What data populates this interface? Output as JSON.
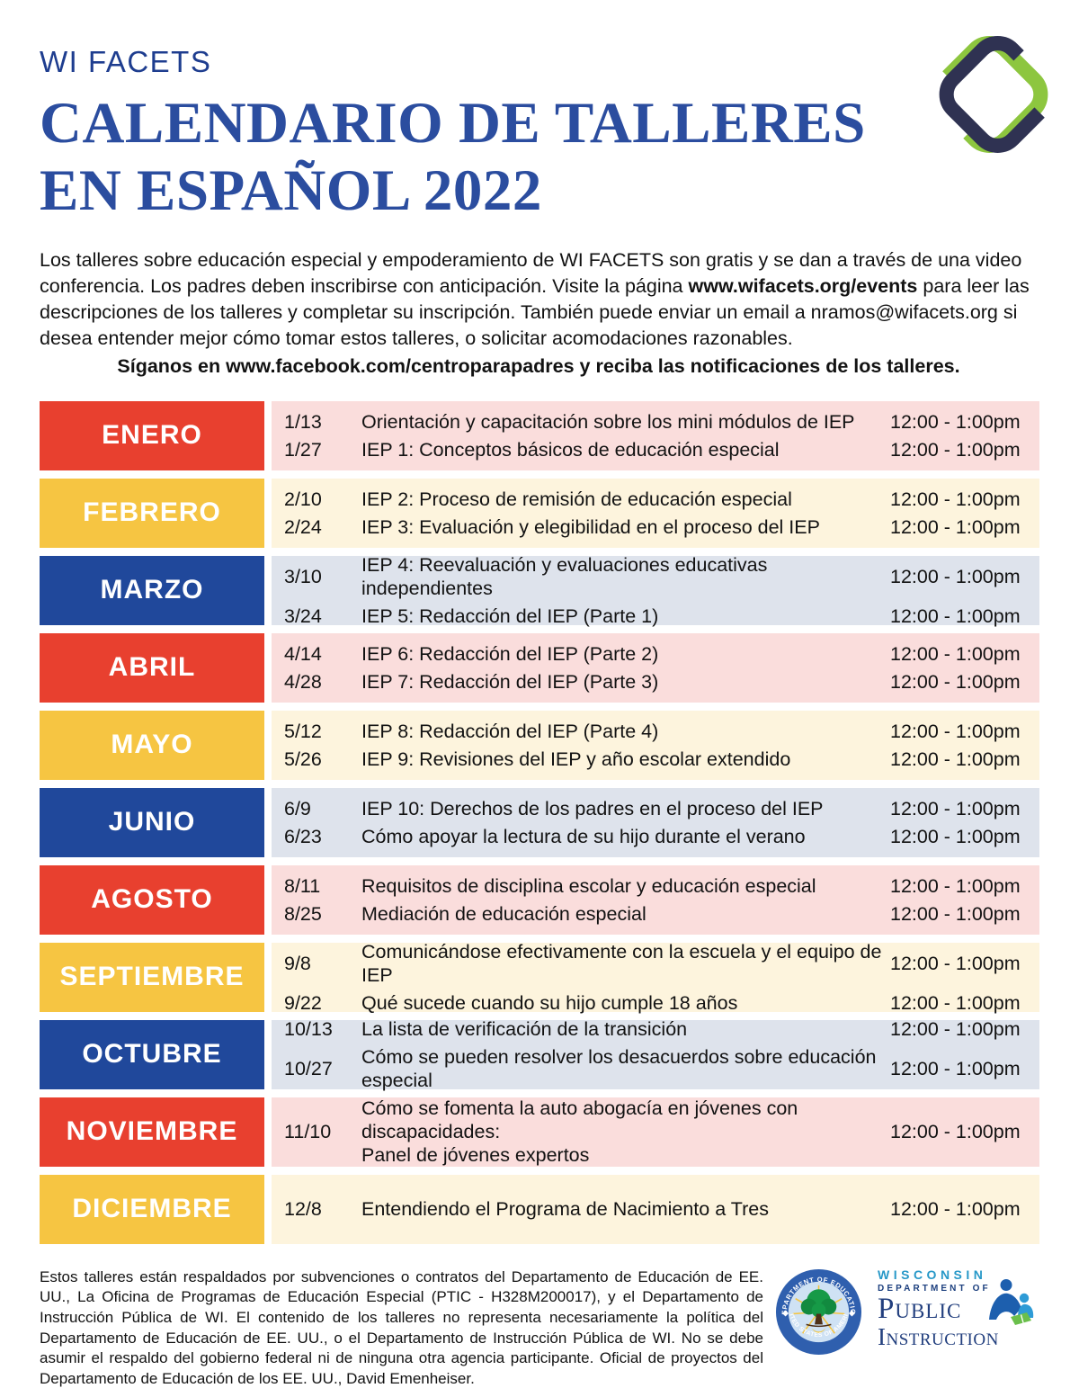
{
  "header": {
    "org": "WI FACETS",
    "title_line1": "CALENDARIO DE TALLERES",
    "title_line2": "EN ESPAÑOL 2022"
  },
  "intro": {
    "text_before_link": "Los talleres sobre educación especial y empoderamiento de WI FACETS son gratis y se dan a través de una video conferencia. Los padres deben inscribirse con anticipación. Visite la página ",
    "link_bold": "www.wifacets.org/events",
    "text_after_link": " para leer las descripciones de los talleres y completar su inscripción. También puede enviar un email a nramos@wifacets.org si desea entender mejor cómo tomar estos talleres, o solicitar acomodaciones razonables.",
    "follow_line": "Síganos en www.facebook.com/centroparapadres y reciba las notificaciones de los talleres."
  },
  "colors": {
    "red": "#e8402f",
    "yellow": "#f6c542",
    "blue": "#20489b",
    "red_row_bg": "#fadddc",
    "yellow_row_bg": "#fdf4dd",
    "blue_row_bg": "#dee3ec",
    "title_blue": "#2b4d9f",
    "logo_green": "#8dc63f",
    "logo_navy": "#2f3252"
  },
  "calendar": {
    "months": [
      {
        "name": "ENERO",
        "scheme": "red",
        "events": [
          {
            "date": "1/13",
            "title": "Orientación y capacitación sobre los mini módulos de IEP",
            "time": "12:00 - 1:00pm"
          },
          {
            "date": "1/27",
            "title": "IEP 1: Conceptos básicos de educación especial",
            "time": "12:00 - 1:00pm"
          }
        ]
      },
      {
        "name": "FEBRERO",
        "scheme": "yellow",
        "events": [
          {
            "date": "2/10",
            "title": "IEP 2: Proceso de remisión de educación especial",
            "time": "12:00 - 1:00pm"
          },
          {
            "date": "2/24",
            "title": "IEP 3: Evaluación y elegibilidad en el proceso del IEP",
            "time": "12:00 - 1:00pm"
          }
        ]
      },
      {
        "name": "MARZO",
        "scheme": "blue",
        "events": [
          {
            "date": "3/10",
            "title": "IEP 4: Reevaluación y evaluaciones educativas independientes",
            "time": "12:00 - 1:00pm"
          },
          {
            "date": "3/24",
            "title": "IEP 5: Redacción del IEP (Parte 1)",
            "time": "12:00 - 1:00pm"
          }
        ]
      },
      {
        "name": "ABRIL",
        "scheme": "red",
        "events": [
          {
            "date": "4/14",
            "title": "IEP 6: Redacción del IEP (Parte 2)",
            "time": "12:00 - 1:00pm"
          },
          {
            "date": "4/28",
            "title": "IEP 7: Redacción del IEP (Parte 3)",
            "time": "12:00 - 1:00pm"
          }
        ]
      },
      {
        "name": "MAYO",
        "scheme": "yellow",
        "events": [
          {
            "date": "5/12",
            "title": "IEP 8: Redacción del IEP (Parte 4)",
            "time": "12:00 - 1:00pm"
          },
          {
            "date": "5/26",
            "title": "IEP 9: Revisiones del IEP y año escolar extendido",
            "time": "12:00 - 1:00pm"
          }
        ]
      },
      {
        "name": "JUNIO",
        "scheme": "blue",
        "events": [
          {
            "date": "6/9",
            "title": "IEP 10: Derechos de los padres en el proceso del IEP",
            "time": "12:00 - 1:00pm"
          },
          {
            "date": "6/23",
            "title": "Cómo apoyar la lectura de su hijo durante el verano",
            "time": "12:00 - 1:00pm"
          }
        ]
      },
      {
        "name": "AGOSTO",
        "scheme": "red",
        "events": [
          {
            "date": "8/11",
            "title": "Requisitos de disciplina escolar y educación especial",
            "time": "12:00 - 1:00pm"
          },
          {
            "date": "8/25",
            "title": "Mediación de educación especial",
            "time": "12:00 - 1:00pm"
          }
        ]
      },
      {
        "name": "SEPTIEMBRE",
        "scheme": "yellow",
        "events": [
          {
            "date": "9/8",
            "title": "Comunicándose efectivamente con la escuela y el equipo de IEP",
            "time": "12:00 - 1:00pm"
          },
          {
            "date": "9/22",
            "title": "Qué sucede cuando su hijo cumple 18 años",
            "time": "12:00 - 1:00pm"
          }
        ]
      },
      {
        "name": "OCTUBRE",
        "scheme": "blue",
        "events": [
          {
            "date": "10/13",
            "title": "La lista de verificación de la transición",
            "time": "12:00 - 1:00pm"
          },
          {
            "date": "10/27",
            "title": "Cómo se pueden resolver los desacuerdos sobre educación especial",
            "time": "12:00 - 1:00pm"
          }
        ]
      },
      {
        "name": "NOVIEMBRE",
        "scheme": "red",
        "events": [
          {
            "date": "11/10",
            "title": "Cómo se fomenta la auto abogacía en jóvenes con discapacidades:\nPanel de jóvenes expertos",
            "time": "12:00 - 1:00pm"
          }
        ]
      },
      {
        "name": "DICIEMBRE",
        "scheme": "yellow",
        "events": [
          {
            "date": "12/8",
            "title": "Entendiendo el Programa de Nacimiento a Tres",
            "time": "12:00 - 1:00pm"
          }
        ]
      }
    ]
  },
  "footer": {
    "disclaimer": "Estos talleres están respaldados por subvenciones o contratos del Departamento de Educación de EE. UU., La Oficina de Programas de Educación Especial (PTIC - H328M200017), y el Departamento de Instrucción Pública de WI. El contenido de los talleres no representa necesariamente la política del Departamento de Educación de EE. UU., o el Departamento de Instrucción Pública de WI. No se debe asumir el respaldo del gobierno federal ni de ninguna otra agencia participante. Oficial de proyectos del Departamento de Educación de los EE. UU., David Emenheiser.",
    "doe_seal": {
      "arc_top": "DEPARTMENT OF EDUCATION",
      "arc_bottom": "UNITED STATES OF AMERICA"
    },
    "dpi_logo": {
      "line1": "WISCONSIN",
      "line2": "DEPARTMENT OF",
      "line3": "Public",
      "line4": "Instruction"
    }
  }
}
